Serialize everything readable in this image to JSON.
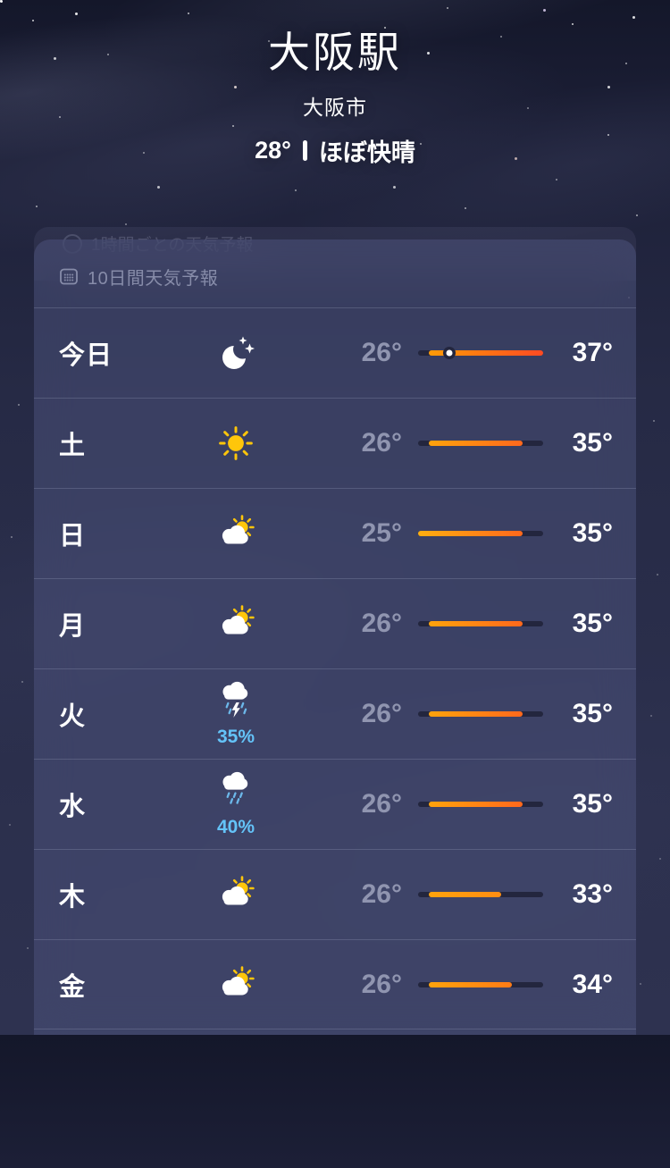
{
  "location": {
    "name": "大阪駅",
    "city": "大阪市",
    "current_temp": "28°",
    "condition": "ほぼ快晴"
  },
  "hourly_ghost": {
    "label": "1時間ごとの天気予報"
  },
  "forecast_card": {
    "header": {
      "label": "10日間天気予報",
      "icon": "calendar-icon"
    },
    "temp_scale": {
      "min": 25,
      "max": 37
    },
    "rows": [
      {
        "day": "今日",
        "icon": "moon-stars",
        "precip": "",
        "low": "26°",
        "high": "37°",
        "low_v": 26,
        "high_v": 37,
        "current_v": 28,
        "bar": {
          "from": "#ff9b06",
          "to": "#ff4a22"
        }
      },
      {
        "day": "土",
        "icon": "sun",
        "precip": "",
        "low": "26°",
        "high": "35°",
        "low_v": 26,
        "high_v": 35,
        "current_v": null,
        "bar": {
          "from": "#ffa30c",
          "to": "#ff681c"
        }
      },
      {
        "day": "日",
        "icon": "sun-cloud",
        "precip": "",
        "low": "25°",
        "high": "35°",
        "low_v": 25,
        "high_v": 35,
        "current_v": null,
        "bar": {
          "from": "#ffae10",
          "to": "#ff681c"
        }
      },
      {
        "day": "月",
        "icon": "sun-cloud",
        "precip": "",
        "low": "26°",
        "high": "35°",
        "low_v": 26,
        "high_v": 35,
        "current_v": null,
        "bar": {
          "from": "#ffa30c",
          "to": "#ff681c"
        }
      },
      {
        "day": "火",
        "icon": "cloud-bolt-rain",
        "precip": "35%",
        "low": "26°",
        "high": "35°",
        "low_v": 26,
        "high_v": 35,
        "current_v": null,
        "bar": {
          "from": "#ffa30c",
          "to": "#ff681c"
        }
      },
      {
        "day": "水",
        "icon": "cloud-rain",
        "precip": "40%",
        "low": "26°",
        "high": "35°",
        "low_v": 26,
        "high_v": 35,
        "current_v": null,
        "bar": {
          "from": "#ffa30c",
          "to": "#ff681c"
        }
      },
      {
        "day": "木",
        "icon": "sun-cloud",
        "precip": "",
        "low": "26°",
        "high": "33°",
        "low_v": 26,
        "high_v": 33,
        "current_v": null,
        "bar": {
          "from": "#ffa30c",
          "to": "#ff8d12"
        }
      },
      {
        "day": "金",
        "icon": "sun-cloud",
        "precip": "",
        "low": "26°",
        "high": "34°",
        "low_v": 26,
        "high_v": 34,
        "current_v": null,
        "bar": {
          "from": "#ffa30c",
          "to": "#ff7b16"
        }
      }
    ]
  },
  "colors": {
    "precip_accent": "#64c3f8",
    "low_temp_text": "#9095b0",
    "bar_track": "#23263e",
    "current_dot": "#ffffff"
  }
}
